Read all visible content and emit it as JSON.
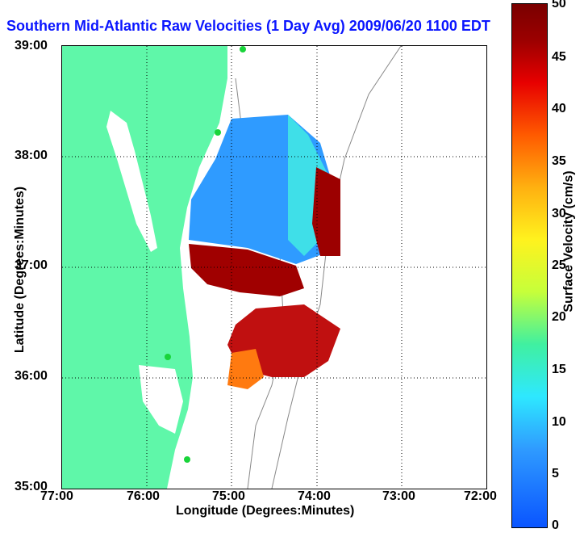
{
  "title": "Southern Mid-Atlantic Raw Velocities (1 Day Avg) 2009/06/20 1100 EDT",
  "axes": {
    "x_label": "Longitude (Degrees:Minutes)",
    "y_label": "Latitude (Degrees:Minutes)",
    "x_ticks": [
      "77:00",
      "76:00",
      "75:00",
      "74:00",
      "73:00",
      "72:00"
    ],
    "y_ticks": [
      "39:00",
      "38:00",
      "37:00",
      "36:00",
      "35:00"
    ]
  },
  "colorbar": {
    "label": "Surface Velocity (cm/s)",
    "ticks": [
      "50",
      "45",
      "40",
      "35",
      "30",
      "25",
      "20",
      "15",
      "10",
      "5",
      "0"
    ],
    "min": 0,
    "max": 50
  },
  "colors": {
    "land": "#5ff7a9",
    "title": "#0b16ff",
    "station": "#19d43a"
  }
}
